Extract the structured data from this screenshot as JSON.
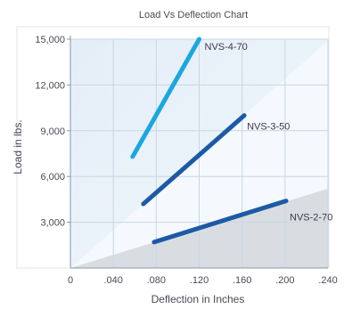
{
  "chart_data": {
    "type": "line",
    "title": "Load Vs Deflection Chart",
    "xlabel": "Deflection in Inches",
    "ylabel": "Load in lbs.",
    "xlim": [
      0,
      0.24
    ],
    "ylim": [
      0,
      15000
    ],
    "x_ticks": [
      0,
      0.04,
      0.08,
      0.12,
      0.16,
      0.2,
      0.24
    ],
    "x_tick_labels": [
      "0",
      ".040",
      ".080",
      ".120",
      ".160",
      ".200",
      ".240"
    ],
    "y_ticks": [
      3000,
      6000,
      9000,
      12000,
      15000
    ],
    "y_tick_labels": [
      "3,000",
      "6,000",
      "9,000",
      "12,000",
      "15,000"
    ],
    "grid": true,
    "legend": "inline labels",
    "series": [
      {
        "name": "NVS-4-70",
        "color": "#1aa8de",
        "x": [
          0.058,
          0.12
        ],
        "y": [
          7300,
          15000
        ]
      },
      {
        "name": "NVS-3-50",
        "color": "#1c5aa6",
        "x": [
          0.068,
          0.162
        ],
        "y": [
          4200,
          10000
        ]
      },
      {
        "name": "NVS-2-70",
        "color": "#1c5aa6",
        "x": [
          0.078,
          0.201
        ],
        "y": [
          1700,
          4400
        ]
      }
    ]
  }
}
